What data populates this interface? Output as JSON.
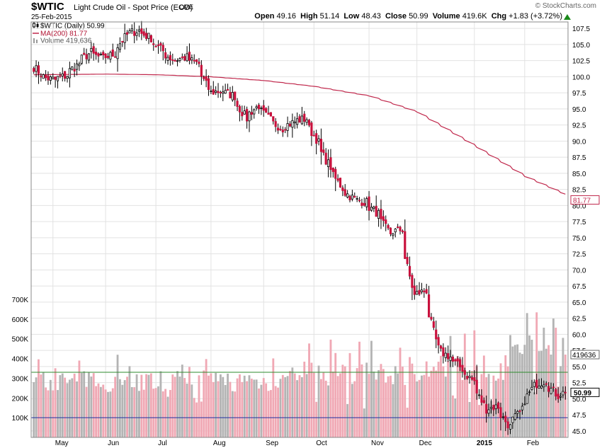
{
  "header": {
    "ticker": "$WTIC",
    "description": "Light Crude Oil - Spot Price (EOD)",
    "exchange": "CME",
    "date": "25-Feb-2015",
    "brand": "© StockCharts.com",
    "open_label": "Open",
    "open": "49.16",
    "high_label": "High",
    "high": "51.14",
    "low_label": "Low",
    "low": "48.43",
    "close_label": "Close",
    "close": "50.99",
    "volume_label": "Volume",
    "volume": "419.6K",
    "chg_label": "Chg",
    "chg": "+1.83 (+3.72%)"
  },
  "legend": {
    "price": "$WTIC (Daily) 50.99",
    "ma": "MA(200) 81.77",
    "volume": "Volume 419,636"
  },
  "colors": {
    "up": "#ffffff",
    "down": "#c8103c",
    "ma": "#c0284c",
    "vol_up": "#b4b4b4",
    "vol_down": "#f0a8b4",
    "grid": "#e2e2e2",
    "green_line": "#2e8b2e",
    "blue_line": "#1f2fa0"
  },
  "chart_data": {
    "type": "candlestick",
    "y_axis": {
      "range": [
        44,
        108.5
      ],
      "ticks": [
        "107.5",
        "105.0",
        "102.5",
        "100.0",
        "97.5",
        "95.0",
        "92.5",
        "90.0",
        "87.5",
        "85.0",
        "82.5",
        "80.0",
        "77.5",
        "75.0",
        "72.5",
        "70.0",
        "67.5",
        "65.0",
        "62.5",
        "60.0",
        "57.5",
        "55.0",
        "52.5",
        "50.0",
        "47.5",
        "45.0"
      ],
      "tick_values": [
        107.5,
        105,
        102.5,
        100,
        97.5,
        95,
        92.5,
        90,
        87.5,
        85,
        82.5,
        80,
        77.5,
        75,
        72.5,
        70,
        67.5,
        65,
        62.5,
        60,
        57.5,
        55,
        52.5,
        50,
        47.5,
        45
      ]
    },
    "volume_axis": {
      "range": [
        0,
        800000
      ],
      "ticks": [
        "700K",
        "600K",
        "500K",
        "400K",
        "300K",
        "200K",
        "100K"
      ],
      "tick_values": [
        700000,
        600000,
        500000,
        400000,
        300000,
        200000,
        100000
      ]
    },
    "x_ticks": [
      "May",
      "Jun",
      "Jul",
      "Aug",
      "Sep",
      "Oct",
      "Nov",
      "Dec",
      "2015",
      "Feb"
    ],
    "x_tick_dates": [
      "2014-05-01",
      "2014-06-02",
      "2014-07-01",
      "2014-08-01",
      "2014-09-02",
      "2014-10-01",
      "2014-11-03",
      "2014-12-01",
      "2015-01-02",
      "2015-02-02"
    ],
    "price_anchors": {
      "dates": [
        "2014-04-21",
        "2014-04-25",
        "2014-05-02",
        "2014-05-09",
        "2014-05-16",
        "2014-05-23",
        "2014-05-30",
        "2014-06-06",
        "2014-06-13",
        "2014-06-20",
        "2014-06-27",
        "2014-07-04",
        "2014-07-11",
        "2014-07-18",
        "2014-07-25",
        "2014-08-01",
        "2014-08-08",
        "2014-08-15",
        "2014-08-22",
        "2014-08-29",
        "2014-09-05",
        "2014-09-12",
        "2014-09-19",
        "2014-09-26",
        "2014-10-03",
        "2014-10-10",
        "2014-10-17",
        "2014-10-24",
        "2014-10-31",
        "2014-11-07",
        "2014-11-14",
        "2014-11-21",
        "2014-11-28",
        "2014-12-05",
        "2014-12-12",
        "2014-12-19",
        "2014-12-26",
        "2015-01-02",
        "2015-01-09",
        "2015-01-16",
        "2015-01-23",
        "2015-01-30",
        "2015-02-06",
        "2015-02-13",
        "2015-02-20",
        "2015-02-25"
      ],
      "closes": [
        101.5,
        100.0,
        99.5,
        100.2,
        102.0,
        103.8,
        102.8,
        103.5,
        106.5,
        107.2,
        106.0,
        104.0,
        102.5,
        103.0,
        102.0,
        97.5,
        97.8,
        97.0,
        93.5,
        95.5,
        93.3,
        92.0,
        93.0,
        93.5,
        89.8,
        86.0,
        82.7,
        81.0,
        80.5,
        78.7,
        75.7,
        76.3,
        66.0,
        66.8,
        57.8,
        56.5,
        54.7,
        52.7,
        48.4,
        48.8,
        45.6,
        48.2,
        52.0,
        52.8,
        50.5,
        50.99
      ]
    },
    "ma200": {
      "dates": [
        "2014-04-21",
        "2014-06-02",
        "2014-07-01",
        "2014-08-01",
        "2014-09-02",
        "2014-10-01",
        "2014-11-03",
        "2014-12-01",
        "2015-01-02",
        "2015-02-02",
        "2015-02-25"
      ],
      "values": [
        100.3,
        100.4,
        100.3,
        100.0,
        99.4,
        98.5,
        97.0,
        94.5,
        89.5,
        84.5,
        81.77
      ]
    },
    "volume_levels": [
      330000,
      100000
    ],
    "last_price": "50.99",
    "ma_label": "81.77",
    "last_volume": "419636"
  }
}
